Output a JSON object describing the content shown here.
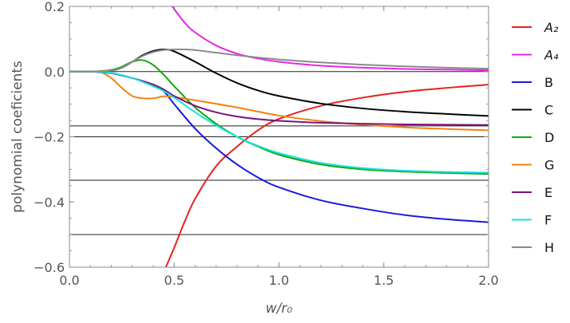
{
  "chart_data": {
    "type": "line",
    "xlabel": "w/r₀",
    "ylabel": "polynomial coeficients",
    "xlim": [
      0,
      2
    ],
    "ylim": [
      -0.6,
      0.2
    ],
    "x_ticks": [
      "0.0",
      "0.5",
      "1.0",
      "1.5",
      "2.0"
    ],
    "y_ticks": [
      "0.2",
      "0.0",
      "−0.2",
      "−0.4",
      "−0.6"
    ],
    "grid": false,
    "legend_position": "right",
    "reference_lines_y": [
      0.0,
      -0.1667,
      -0.2,
      -0.3333,
      -0.5
    ],
    "series": [
      {
        "name": "A₂",
        "color": "#e8201e",
        "x": [
          0.46,
          0.5,
          0.55,
          0.6,
          0.7,
          0.8,
          0.9,
          1.0,
          1.2,
          1.4,
          1.6,
          1.8,
          2.0
        ],
        "y": [
          -0.6,
          -0.54,
          -0.46,
          -0.39,
          -0.29,
          -0.23,
          -0.18,
          -0.145,
          -0.105,
          -0.08,
          -0.062,
          -0.05,
          -0.04
        ]
      },
      {
        "name": "A₄",
        "color": "#e825e8",
        "x": [
          0.49,
          0.55,
          0.6,
          0.7,
          0.8,
          0.9,
          1.0,
          1.2,
          1.4,
          1.6,
          1.8,
          2.0
        ],
        "y": [
          0.2,
          0.15,
          0.12,
          0.08,
          0.055,
          0.04,
          0.03,
          0.018,
          0.012,
          0.008,
          0.006,
          0.004
        ]
      },
      {
        "name": "B",
        "color": "#1a1adc",
        "x": [
          0,
          0.1,
          0.2,
          0.3,
          0.4,
          0.45,
          0.5,
          0.6,
          0.7,
          0.8,
          0.9,
          1.0,
          1.2,
          1.4,
          1.6,
          1.8,
          2.0
        ],
        "y": [
          0,
          0,
          -0.005,
          -0.02,
          -0.04,
          -0.06,
          -0.1,
          -0.175,
          -0.235,
          -0.285,
          -0.325,
          -0.355,
          -0.395,
          -0.42,
          -0.44,
          -0.453,
          -0.462
        ]
      },
      {
        "name": "C",
        "color": "#000000",
        "x": [
          0,
          0.1,
          0.2,
          0.25,
          0.3,
          0.35,
          0.4,
          0.45,
          0.5,
          0.6,
          0.7,
          0.8,
          0.9,
          1.0,
          1.2,
          1.4,
          1.6,
          1.8,
          2.0
        ],
        "y": [
          0,
          0,
          0.003,
          0.012,
          0.03,
          0.05,
          0.063,
          0.068,
          0.062,
          0.03,
          -0.005,
          -0.035,
          -0.058,
          -0.075,
          -0.098,
          -0.113,
          -0.123,
          -0.13,
          -0.136
        ]
      },
      {
        "name": "D",
        "color": "#13a713",
        "x": [
          0,
          0.1,
          0.2,
          0.25,
          0.3,
          0.35,
          0.4,
          0.45,
          0.5,
          0.6,
          0.7,
          0.8,
          0.9,
          1.0,
          1.2,
          1.4,
          1.6,
          1.8,
          2.0
        ],
        "y": [
          0,
          0,
          0.005,
          0.015,
          0.03,
          0.035,
          0.02,
          -0.01,
          -0.045,
          -0.11,
          -0.16,
          -0.2,
          -0.23,
          -0.255,
          -0.285,
          -0.3,
          -0.307,
          -0.311,
          -0.314
        ]
      },
      {
        "name": "G",
        "color": "#f5820f",
        "x": [
          0,
          0.1,
          0.15,
          0.2,
          0.25,
          0.3,
          0.35,
          0.4,
          0.45,
          0.5,
          0.6,
          0.8,
          1.0,
          1.2,
          1.4,
          1.6,
          1.8,
          2.0
        ],
        "y": [
          0,
          0,
          -0.002,
          -0.02,
          -0.05,
          -0.075,
          -0.082,
          -0.082,
          -0.076,
          -0.078,
          -0.088,
          -0.11,
          -0.135,
          -0.152,
          -0.163,
          -0.171,
          -0.176,
          -0.18
        ]
      },
      {
        "name": "E",
        "color": "#7b127b",
        "x": [
          0,
          0.1,
          0.2,
          0.3,
          0.4,
          0.45,
          0.5,
          0.6,
          0.7,
          0.8,
          0.9,
          1.0,
          1.2,
          1.4,
          1.6,
          1.8,
          2.0
        ],
        "y": [
          0,
          0,
          -0.005,
          -0.02,
          -0.04,
          -0.055,
          -0.075,
          -0.105,
          -0.125,
          -0.138,
          -0.146,
          -0.151,
          -0.157,
          -0.16,
          -0.162,
          -0.163,
          -0.164
        ]
      },
      {
        "name": "F",
        "color": "#14e2e2",
        "x": [
          0,
          0.1,
          0.2,
          0.3,
          0.4,
          0.45,
          0.5,
          0.6,
          0.7,
          0.8,
          0.9,
          1.0,
          1.2,
          1.4,
          1.6,
          1.8,
          2.0
        ],
        "y": [
          0,
          0,
          -0.004,
          -0.02,
          -0.045,
          -0.06,
          -0.08,
          -0.125,
          -0.165,
          -0.2,
          -0.228,
          -0.25,
          -0.28,
          -0.296,
          -0.304,
          -0.308,
          -0.31
        ]
      },
      {
        "name": "H",
        "color": "#8a8a8a",
        "x": [
          0,
          0.1,
          0.2,
          0.25,
          0.3,
          0.35,
          0.4,
          0.45,
          0.5,
          0.55,
          0.6,
          0.7,
          0.8,
          0.9,
          1.0,
          1.2,
          1.4,
          1.6,
          1.8,
          2.0
        ],
        "y": [
          0,
          0,
          0.003,
          0.012,
          0.03,
          0.048,
          0.06,
          0.066,
          0.068,
          0.068,
          0.066,
          0.058,
          0.05,
          0.043,
          0.037,
          0.028,
          0.021,
          0.016,
          0.012,
          0.009
        ]
      }
    ]
  }
}
